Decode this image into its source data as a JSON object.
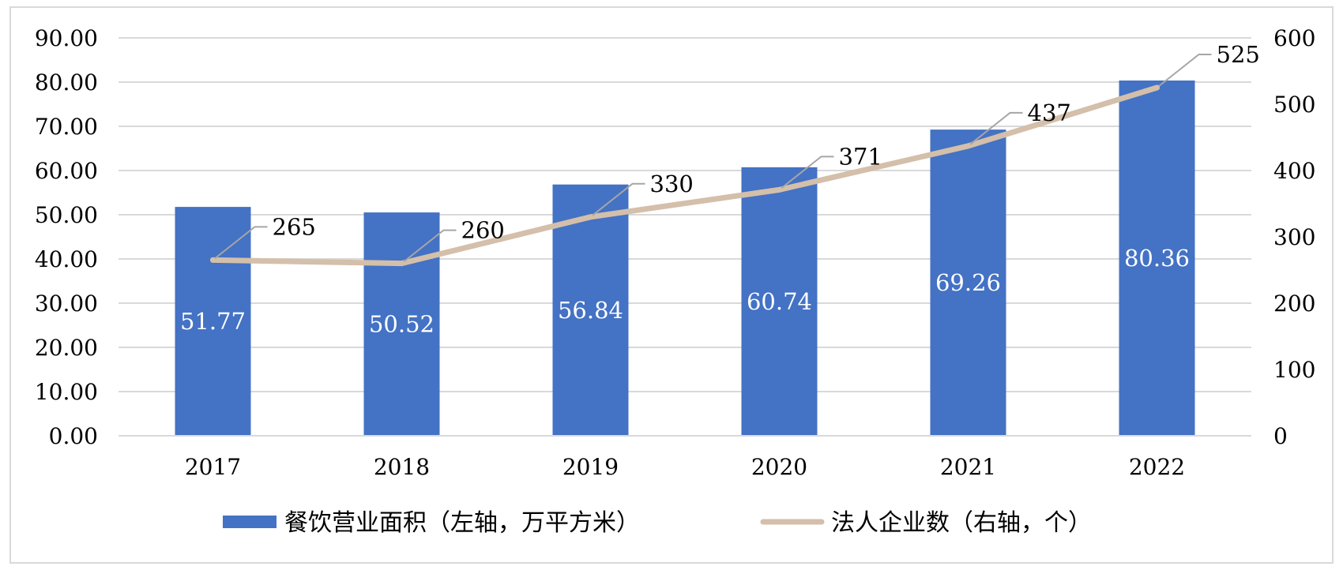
{
  "chart_data": {
    "type": "bar",
    "categories": [
      "2017",
      "2018",
      "2019",
      "2020",
      "2021",
      "2022"
    ],
    "series": [
      {
        "name": "餐饮营业面积（左轴，万平方米）",
        "type": "bar",
        "axis": "left",
        "values": [
          51.77,
          50.52,
          56.84,
          60.74,
          69.26,
          80.36
        ],
        "labels": [
          "51.77",
          "50.52",
          "56.84",
          "60.74",
          "69.26",
          "80.36"
        ],
        "color": "#4472c4"
      },
      {
        "name": "法人企业数（右轴，个）",
        "type": "line",
        "axis": "right",
        "values": [
          265,
          260,
          330,
          371,
          437,
          525
        ],
        "labels": [
          "265",
          "260",
          "330",
          "371",
          "437",
          "525"
        ],
        "color": "#d4bfaa"
      }
    ],
    "y_left": {
      "ylim": [
        0,
        90
      ],
      "ticks": [
        0,
        10,
        20,
        30,
        40,
        50,
        60,
        70,
        80,
        90
      ],
      "tick_labels": [
        "0.00",
        "10.00",
        "20.00",
        "30.00",
        "40.00",
        "50.00",
        "60.00",
        "70.00",
        "80.00",
        "90.00"
      ]
    },
    "y_right": {
      "ylim": [
        0,
        600
      ],
      "ticks": [
        0,
        100,
        200,
        300,
        400,
        500,
        600
      ],
      "tick_labels": [
        "0",
        "100",
        "200",
        "300",
        "400",
        "500",
        "600"
      ]
    },
    "grid": true,
    "legend": "bottom",
    "colors": {
      "bar": "#4472c4",
      "line": "#d4bfaa",
      "grid": "#d9d9d9",
      "leader": "#a6a6a6",
      "text": "#000000",
      "bar_label": "#ffffff"
    }
  }
}
